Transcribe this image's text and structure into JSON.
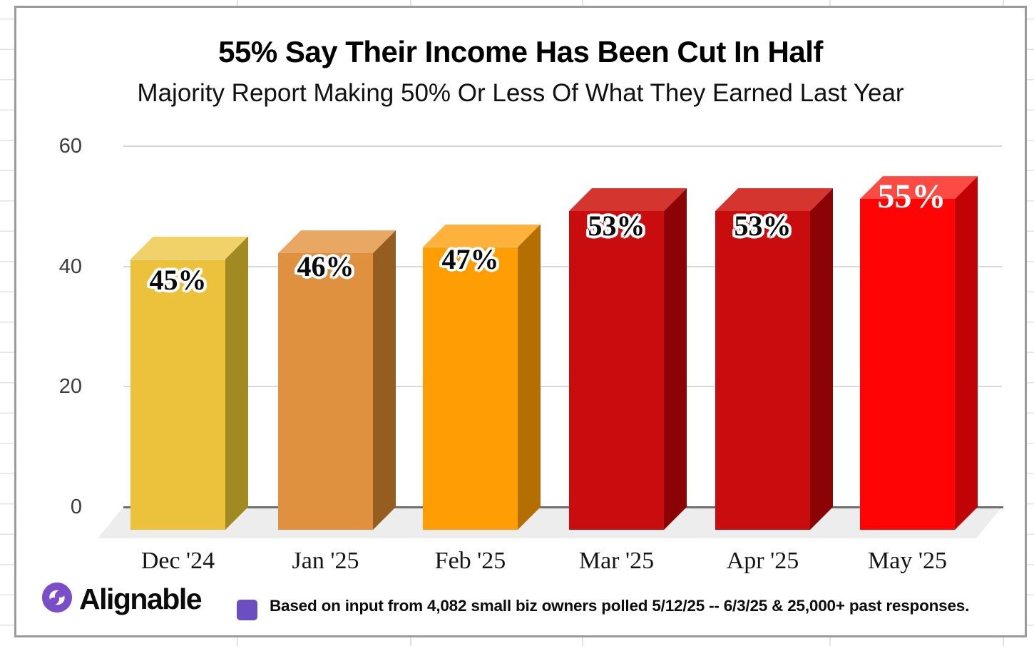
{
  "chart": {
    "title": "55% Say Their Income Has Been Cut In Half",
    "subtitle": "Majority Report Making 50% Or Less Of What They Earned Last Year",
    "y_axis": {
      "tick_labels": [
        "60",
        "40",
        "20",
        "0"
      ],
      "tick_values": [
        60,
        40,
        20,
        0
      ]
    },
    "bars": [
      {
        "category": "Dec '24",
        "value": 45,
        "label": "45%",
        "front": "#ECC23C",
        "top": "#F1D269",
        "side": "#A18A21",
        "label_color": "#0b0b0b",
        "outline": true
      },
      {
        "category": "Jan '25",
        "value": 46,
        "label": "46%",
        "front": "#E0913F",
        "top": "#E8A763",
        "side": "#955E20",
        "label_color": "#0b0b0b",
        "outline": true
      },
      {
        "category": "Feb '25",
        "value": 47,
        "label": "47%",
        "front": "#FF9D04",
        "top": "#FFB23B",
        "side": "#B56F00",
        "label_color": "#0b0b0b",
        "outline": true
      },
      {
        "category": "Mar '25",
        "value": 53,
        "label": "53%",
        "front": "#C90D0F",
        "top": "#D4352F",
        "side": "#8C0305",
        "label_color": "#0b0b0b",
        "outline": true
      },
      {
        "category": "Apr '25",
        "value": 53,
        "label": "53%",
        "front": "#C90D0F",
        "top": "#D4352F",
        "side": "#8C0305",
        "label_color": "#0b0b0b",
        "outline": true
      },
      {
        "category": "May '25",
        "value": 55,
        "label": "55%",
        "front": "#FE0404",
        "top": "#FB4B42",
        "side": "#C00304",
        "label_color": "#ffffff",
        "outline": false
      }
    ]
  },
  "chart_data": {
    "type": "bar",
    "style": "3d-column",
    "title": "55% Say Their Income Has Been Cut In Half",
    "subtitle": "Majority Report Making 50% Or Less Of What They Earned Last Year",
    "categories": [
      "Dec '24",
      "Jan '25",
      "Feb '25",
      "Mar '25",
      "Apr '25",
      "May '25"
    ],
    "values": [
      45,
      46,
      47,
      53,
      53,
      55
    ],
    "data_labels": [
      "45%",
      "46%",
      "47%",
      "53%",
      "53%",
      "55%"
    ],
    "bar_colors": [
      "#ECC23C",
      "#E0913F",
      "#FF9D04",
      "#C90D0F",
      "#C90D0F",
      "#FE0404"
    ],
    "xlabel": "",
    "ylabel": "",
    "ylim": [
      0,
      60
    ],
    "yticks": [
      0,
      20,
      40,
      60
    ],
    "grid": "horizontal",
    "legend": "none"
  },
  "footer": {
    "brand": "Alignable",
    "note": "Based on input from 4,082 small biz owners polled 5/12/25 -- 6/3/25 & 25,000+ past responses.",
    "bullet_color": "#6B4FC0",
    "logo_color": "#7A4EC8"
  }
}
